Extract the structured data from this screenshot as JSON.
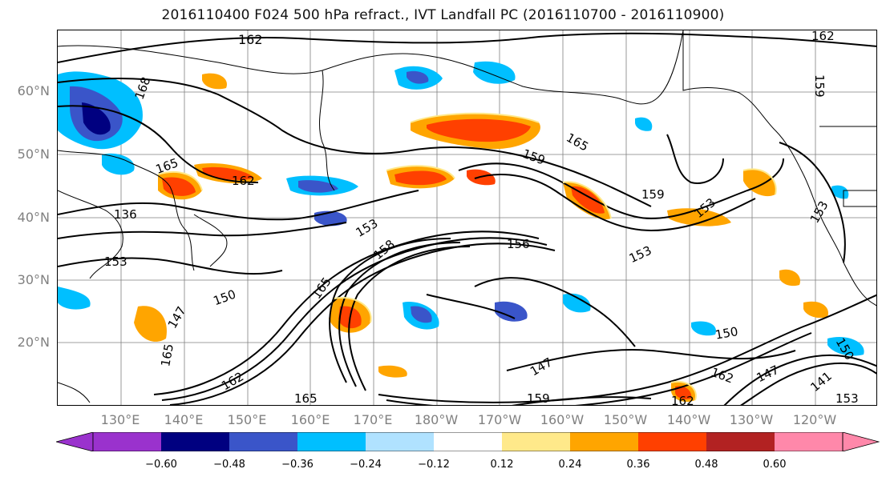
{
  "title": "2016110400 F024 500 hPa refract., IVT Landfall PC (2016110700 - 2016110900)",
  "lat_labels": [
    "60°N",
    "50°N",
    "40°N",
    "30°N",
    "20°N"
  ],
  "lon_labels": [
    "130°E",
    "140°E",
    "150°E",
    "160°E",
    "170°E",
    "180°W",
    "170°W",
    "160°W",
    "150°W",
    "140°W",
    "130°W",
    "120°W"
  ],
  "contour_labels": [
    "162",
    "168",
    "165",
    "162",
    "136",
    "153",
    "150",
    "147",
    "165",
    "162",
    "165",
    "153",
    "158",
    "156",
    "159",
    "165",
    "153",
    "153",
    "159",
    "150",
    "162",
    "147",
    "147",
    "153",
    "150",
    "141",
    "159",
    "162",
    "153",
    "162",
    "165",
    "159"
  ],
  "colorbar": {
    "colors": [
      "#9a32cd",
      "#000080",
      "#3a55c9",
      "#00bfff",
      "#b0e2ff",
      "#ffffff",
      "#ffe98a",
      "#ffa500",
      "#ff4000",
      "#b22222",
      "#ff88aa"
    ],
    "tick_labels": [
      "−0.60",
      "−0.48",
      "−0.36",
      "−0.24",
      "−0.12",
      "0.12",
      "0.24",
      "0.36",
      "0.48",
      "0.60"
    ]
  },
  "map_colors": {
    "coast": "#000000",
    "contour": "#000000",
    "grid": "#7f7f7f"
  }
}
